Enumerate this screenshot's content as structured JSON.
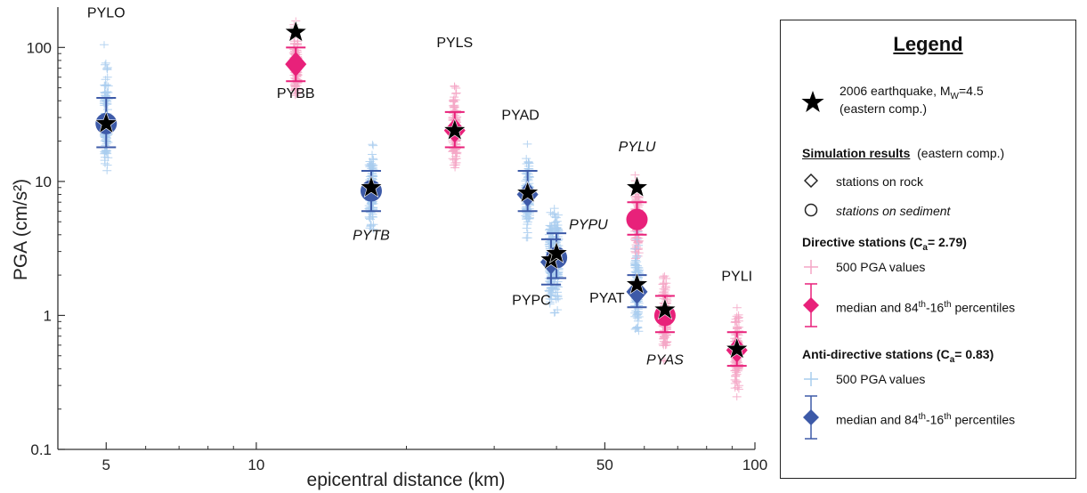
{
  "chart_data": {
    "type": "scatter",
    "xscale": "log",
    "yscale": "log",
    "xlim": [
      4,
      100
    ],
    "ylim": [
      0.1,
      200
    ],
    "xlabel": "epicentral distance (km)",
    "ylabel": "PGA (cm/s²)",
    "xticks": [
      {
        "v": 5,
        "label": "5"
      },
      {
        "v": 10,
        "label": "10"
      },
      {
        "v": 50,
        "label": "50"
      },
      {
        "v": 100,
        "label": "100"
      }
    ],
    "yticks": [
      {
        "v": 0.1,
        "label": "0.1"
      },
      {
        "v": 1,
        "label": "1"
      },
      {
        "v": 10,
        "label": "10"
      },
      {
        "v": 100,
        "label": "100"
      }
    ],
    "colors": {
      "directive": "#e8217a",
      "directive_cloud": "#f4a6c6",
      "antidirective": "#3d5aa8",
      "antidirective_cloud": "#a9cdee",
      "observed": "#000000"
    },
    "stations": [
      {
        "name": "PYLO",
        "italic": false,
        "site": "sediment",
        "group": "anti-directive",
        "distance": 5,
        "median": 27,
        "p16": 18,
        "p84": 42,
        "cloud_min": 9,
        "cloud_max": 120,
        "observed": 27
      },
      {
        "name": "PYBB",
        "italic": false,
        "site": "rock",
        "group": "directive",
        "distance": 12,
        "median": 75,
        "p16": 56,
        "p84": 100,
        "cloud_min": 35,
        "cloud_max": 200,
        "observed": 130
      },
      {
        "name": "PYTB",
        "italic": true,
        "site": "sediment",
        "group": "anti-directive",
        "distance": 17,
        "median": 8.5,
        "p16": 6,
        "p84": 12,
        "cloud_min": 3.5,
        "cloud_max": 22,
        "observed": 9
      },
      {
        "name": "PYLS",
        "italic": false,
        "site": "rock",
        "group": "directive",
        "distance": 25,
        "median": 24,
        "p16": 18,
        "p84": 33,
        "cloud_min": 11,
        "cloud_max": 72,
        "observed": 24
      },
      {
        "name": "PYAD",
        "italic": false,
        "site": "rock",
        "group": "anti-directive",
        "distance": 35,
        "median": 8,
        "p16": 6,
        "p84": 12,
        "cloud_min": 3,
        "cloud_max": 22,
        "observed": 8.2
      },
      {
        "name": "PYPC",
        "italic": false,
        "site": "rock",
        "group": "anti-directive",
        "distance": 39,
        "median": 2.5,
        "p16": 1.7,
        "p84": 3.7,
        "cloud_min": 0.9,
        "cloud_max": 7.5,
        "observed": 2.6
      },
      {
        "name": "PYPU",
        "italic": true,
        "site": "sediment",
        "group": "anti-directive",
        "distance": 40,
        "median": 2.7,
        "p16": 1.9,
        "p84": 4.1,
        "cloud_min": 0.8,
        "cloud_max": 7.8,
        "observed": 2.9
      },
      {
        "name": "PYLU",
        "italic": true,
        "site": "sediment",
        "group": "directive",
        "distance": 58,
        "median": 5.2,
        "p16": 4,
        "p84": 7,
        "cloud_min": 2,
        "cloud_max": 12,
        "observed": 9
      },
      {
        "name": "PYAT",
        "italic": false,
        "site": "rock",
        "group": "anti-directive",
        "distance": 58,
        "median": 1.5,
        "p16": 1.15,
        "p84": 2,
        "cloud_min": 0.6,
        "cloud_max": 5,
        "observed": 1.7
      },
      {
        "name": "PYAS",
        "italic": true,
        "site": "sediment",
        "group": "directive",
        "distance": 66,
        "median": 1,
        "p16": 0.75,
        "p84": 1.4,
        "cloud_min": 0.35,
        "cloud_max": 2.5,
        "observed": 1.1
      },
      {
        "name": "PYLI",
        "italic": false,
        "site": "rock",
        "group": "directive",
        "distance": 92,
        "median": 0.55,
        "p16": 0.42,
        "p84": 0.75,
        "cloud_min": 0.2,
        "cloud_max": 1.3,
        "observed": 0.56
      }
    ]
  },
  "legend": {
    "title": "Legend",
    "observed_line1": "2006 earthquake, M",
    "observed_sub": "W",
    "observed_rest": "=4.5",
    "observed_line2": "(eastern comp.)",
    "sim_heading": "Simulation results",
    "sim_note": "(eastern comp.)",
    "rock_label": "stations on rock",
    "sediment_label": "stations on sediment",
    "directive_heading": "Directive stations (C",
    "directive_sub": "a",
    "directive_value": "= 2.79)",
    "values_label": "500 PGA values",
    "median_a": "median and 84",
    "median_sup1": "th",
    "median_b": "-16",
    "median_sup2": "th",
    "median_c": " percentiles",
    "antidirective_heading": "Anti-directive stations (C",
    "antidirective_sub": "a",
    "antidirective_value": "= 0.83)"
  }
}
